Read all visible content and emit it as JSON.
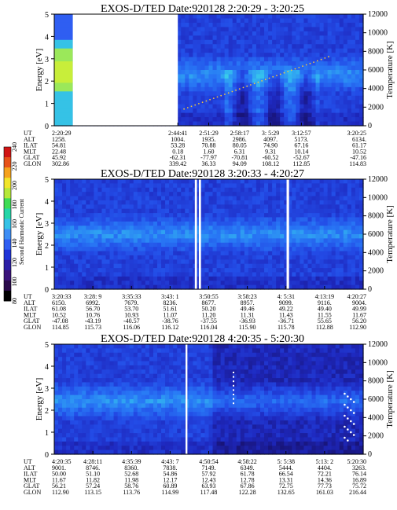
{
  "orbit_labels": [
    "UT",
    "ALT",
    "ILAT",
    "MLT",
    "GLAT",
    "GLON"
  ],
  "colorbar": {
    "label": "Second Harmonic Current",
    "ticks": [
      "80",
      "100",
      "120",
      "140",
      "160",
      "180",
      "200",
      "220",
      "240"
    ],
    "colors": [
      "#000000",
      "#2a0a4a",
      "#3a137a",
      "#2c1fa6",
      "#1f34d8",
      "#2f5ef2",
      "#3e8ef5",
      "#35c2e6",
      "#25d6a8",
      "#3fdc55",
      "#b6e83a",
      "#f2e52b",
      "#f5a21e",
      "#e7521a",
      "#d11515"
    ]
  },
  "chart_data": [
    {
      "type": "heatmap",
      "title": "EXOS-D/TED",
      "date_range": "Date:920128  2:20:29 - 3:20:25",
      "ylabel": "Energy [eV]",
      "y2label": "Temperature [K]",
      "ylim": [
        0,
        5
      ],
      "yticks": [
        "0",
        "1",
        "2",
        "3",
        "4",
        "5"
      ],
      "y2lim": [
        0,
        12000
      ],
      "y2ticks": [
        "0",
        "2000",
        "4000",
        "6000",
        "8000",
        "10000",
        "12000"
      ],
      "gaps": [
        [
          0.06,
          0.4
        ]
      ],
      "band_energy_eV": 2.3,
      "orbit_rows": [
        [
          "2:20:29",
          "1258.",
          "54.81",
          "22.48",
          "45.92",
          "302.86"
        ],
        [
          "2:44:41",
          "1004.",
          "53.28",
          "0.18",
          "-62.31",
          "339.42"
        ],
        [
          "2:51:29",
          "1935.",
          "70.88",
          "1.60",
          "-77.97",
          "36.33"
        ],
        [
          "2:58:17",
          "2986.",
          "80.05",
          "6.31",
          "-70.81",
          "94.09"
        ],
        [
          "3: 5:29",
          "4097.",
          "74.90",
          "9.31",
          "-60.52",
          "108.12"
        ],
        [
          "3:12:57",
          "5173.",
          "67.16",
          "10.14",
          "-52.67",
          "112.85"
        ],
        [
          "3:20:25",
          "6134.",
          "61.17",
          "10.52",
          "-47.16",
          "114.83"
        ]
      ]
    },
    {
      "type": "heatmap",
      "title": "EXOS-D/TED",
      "date_range": "Date:920128  3:20:33 - 4:20:27",
      "ylabel": "Energy [eV]",
      "y2label": "Temperature [K]",
      "ylim": [
        0,
        5
      ],
      "yticks": [
        "0",
        "1",
        "2",
        "3",
        "4",
        "5"
      ],
      "y2lim": [
        0,
        12000
      ],
      "y2ticks": [
        "0",
        "2000",
        "4000",
        "6000",
        "8000",
        "10000",
        "12000"
      ],
      "gaps": [
        [
          0.455,
          0.462
        ],
        [
          0.468,
          0.475
        ],
        [
          0.752,
          0.76
        ]
      ],
      "band_energy_eV": 2.5,
      "orbit_rows": [
        [
          "3:20:33",
          "6150.",
          "61.08",
          "10.52",
          "-47.08",
          "114.85"
        ],
        [
          "3:28: 9",
          "6992.",
          "56.70",
          "10.76",
          "-43.19",
          "115.73"
        ],
        [
          "3:35:33",
          "7679.",
          "53.70",
          "10.93",
          "-40.57",
          "116.06"
        ],
        [
          "3:43: 1",
          "8236.",
          "51.61",
          "11.07",
          "-38.76",
          "116.12"
        ],
        [
          "3:50:55",
          "8677.",
          "50.20",
          "11.20",
          "-37.55",
          "116.04"
        ],
        [
          "3:58:23",
          "8957.",
          "49.46",
          "11.31",
          "-36.93",
          "115.90"
        ],
        [
          "4: 5:31",
          "9099.",
          "49.22",
          "11.43",
          "-36.71",
          "115.78"
        ],
        [
          "4:13:19",
          "9116.",
          "49.40",
          "11.55",
          "55.65",
          "112.88"
        ],
        [
          "4:20:27",
          "9004.",
          "49.99",
          "11.67",
          "56.20",
          "112.90"
        ]
      ]
    },
    {
      "type": "heatmap",
      "title": "EXOS-D/TED",
      "date_range": "Date:920128  4:20:35 - 5:20:30",
      "ylabel": "Energy [eV]",
      "y2label": "Temperature [K]",
      "ylim": [
        0,
        5
      ],
      "yticks": [
        "0",
        "1",
        "2",
        "3",
        "4",
        "5"
      ],
      "y2lim": [
        0,
        12000
      ],
      "y2ticks": [
        "0",
        "2000",
        "4000",
        "6000",
        "8000",
        "10000",
        "12000"
      ],
      "gaps": [
        [
          0.425,
          0.431
        ]
      ],
      "band_energy_eV": 2.4,
      "orbit_rows": [
        [
          "4:20:35",
          "9001.",
          "50.00",
          "11.67",
          "56.21",
          "112.90"
        ],
        [
          "4:28:11",
          "8746.",
          "51.10",
          "11.82",
          "57.24",
          "113.15"
        ],
        [
          "4:35:39",
          "8360.",
          "52.68",
          "11.98",
          "58.76",
          "113.76"
        ],
        [
          "4:43: 7",
          "7838.",
          "54.86",
          "12.17",
          "60.89",
          "114.99"
        ],
        [
          "4:50:54",
          "7149.",
          "57.92",
          "12.43",
          "63.93",
          "117.48"
        ],
        [
          "4:58:22",
          "6349.",
          "61.78",
          "12.78",
          "67.86",
          "122.28"
        ],
        [
          "5: 5:38",
          "5444.",
          "66.54",
          "13.31",
          "72.75",
          "132.65"
        ],
        [
          "5:13: 2",
          "4404.",
          "72.21",
          "14.36",
          "77.73",
          "161.03"
        ],
        [
          "5:20:30",
          "3263.",
          "76.14",
          "16.89",
          "75.72",
          "216.44"
        ]
      ]
    }
  ]
}
